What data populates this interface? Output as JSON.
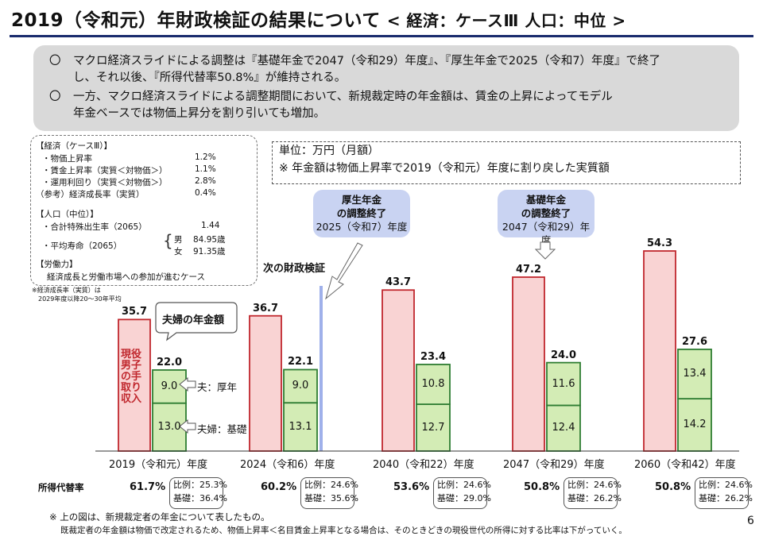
{
  "header": {
    "title": "2019（令和元）年財政検証の結果について",
    "subtitle": "< 経済：ケースⅢ 人口：中位 >"
  },
  "summary": {
    "bullet": "〇",
    "item1_line1": "マクロ経済スライドによる調整は『基礎年金で2047（令和29）年度』、『厚生年金で2025（令和7）年度』で終了",
    "item1_line2": "し、それ以後、『所得代替率50.8%』が維持される。",
    "item2_line1": "一方、マクロ経済スライドによる調整期間において、新規裁定時の年金額は、賃金の上昇によってモデル",
    "item2_line2": "年金ベースでは物価上昇分を割り引いても増加。"
  },
  "assumptions": {
    "econ_title": "【経済（ケースⅢ）】",
    "econ": [
      {
        "label": "・物価上昇率",
        "value": "1.2%"
      },
      {
        "label": "・賃金上昇率（実質＜対物価＞）",
        "value": "1.1%"
      },
      {
        "label": "・運用利回り（実質＜対物価＞）",
        "value": "2.8%"
      },
      {
        "label": "（参考）経済成長率（実質）",
        "value": "0.4%"
      }
    ],
    "pop_title": "【人口（中位）】",
    "tfr_label": "・合計特殊出生率（2065）",
    "tfr_value": "1.44",
    "life_label": "・平均寿命（2065）",
    "male_label": "男",
    "male_value": "84.95歳",
    "female_label": "女",
    "female_value": "91.35歳",
    "labor_title": "【労働力】",
    "labor_text": "経済成長と労働市場への参加が進むケース",
    "note_line1": "※経済成長率（実質）は",
    "note_line2": "2029年度以降20～30年平均"
  },
  "unit": {
    "line1": "単位：万円（月額）",
    "line2": "※ 年金額は物価上昇率で2019（令和元）年度に割り戻した実質額"
  },
  "callouts": {
    "kosei_line1": "厚生年金",
    "kosei_line2": "の調整終了",
    "kosei_line3": "2025（令和7）年度",
    "kiso_line1": "基礎年金",
    "kiso_line2": "の調整終了",
    "kiso_line3": "2047（令和29）年度",
    "next_verification": "次の財政検証",
    "couple_pension": "夫婦の年金額",
    "husband_label": "夫：厚年",
    "couple_label": "夫婦：基礎",
    "income_label": "現役男子の手取り収入"
  },
  "replacement": {
    "row_label": "所得代替率",
    "ratio_label": "比例：",
    "basic_label": "基礎："
  },
  "footnote": {
    "line1": "※ 上の図は、新規裁定者の年金について表したもの。",
    "line2": "既裁定者の年金額は物価で改定されるため、物価上昇率＜名目賃金上昇率となる場合は、そのときどきの現役世代の所得に対する比率は下がっていく。"
  },
  "page_number": "6",
  "colors": {
    "wage_fill": "#f9d3d3",
    "wage_stroke": "#c0272d",
    "pension_fill": "#d3ecb5",
    "pension_stroke": "#2e7d32",
    "callout_fill": "#c9d3f2",
    "marker_line": "#9fb0ea"
  },
  "chart_data": {
    "type": "bar",
    "categories": [
      "2019（令和元）年度",
      "2024（令和6）年度",
      "2040（令和22）年度",
      "2047（令和29）年度",
      "2060（令和42）年度"
    ],
    "series": [
      {
        "name": "現役男子の手取り収入",
        "values": [
          35.7,
          36.7,
          43.7,
          47.2,
          54.3
        ]
      },
      {
        "name": "夫：厚年",
        "values": [
          9.0,
          9.0,
          10.8,
          11.6,
          13.4
        ]
      },
      {
        "name": "夫婦：基礎",
        "values": [
          13.0,
          13.1,
          12.7,
          12.4,
          14.2
        ]
      }
    ],
    "pension_totals": [
      22.0,
      22.1,
      23.4,
      24.0,
      27.6
    ],
    "replacement_rates": [
      "61.7%",
      "60.2%",
      "53.6%",
      "50.8%",
      "50.8%"
    ],
    "proportional_rates": [
      "25.3%",
      "24.6%",
      "24.6%",
      "24.6%",
      "24.6%"
    ],
    "basic_rates": [
      "36.4%",
      "35.6%",
      "29.0%",
      "26.2%",
      "26.2%"
    ],
    "wage_labels": [
      "35.7",
      "36.7",
      "43.7",
      "47.2",
      "54.3"
    ],
    "total_labels": [
      "22.0",
      "22.1",
      "23.4",
      "24.0",
      "27.6"
    ],
    "kosei_labels": [
      "9.0",
      "9.0",
      "10.8",
      "11.6",
      "13.4"
    ],
    "kiso_labels": [
      "13.0",
      "13.1",
      "12.7",
      "12.4",
      "14.2"
    ],
    "unit": "万円（月額）",
    "ylim": [
      0,
      60
    ],
    "grid": false
  }
}
